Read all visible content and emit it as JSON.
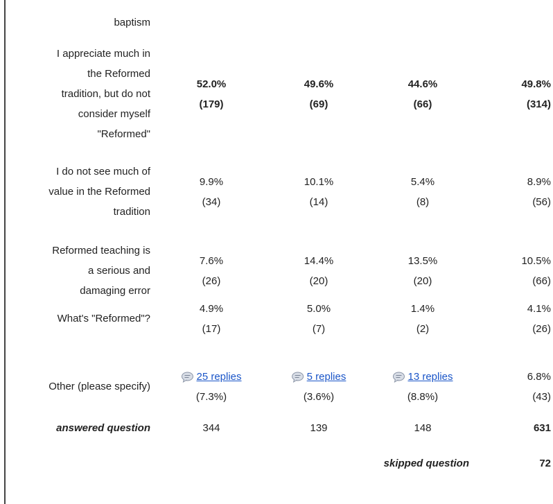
{
  "rows": [
    {
      "label_lines": [
        "baptism"
      ]
    },
    {
      "label_lines": [
        "I appreciate much in",
        "the Reformed",
        "tradition, but do not",
        "consider myself",
        "\"Reformed\""
      ],
      "bold": true,
      "cells": [
        [
          "52.0%",
          "(179)"
        ],
        [
          "49.6%",
          "(69)"
        ],
        [
          "44.6%",
          "(66)"
        ],
        [
          "49.8%",
          "(314)"
        ]
      ]
    },
    {
      "label_lines": [
        "I do not see much of",
        "value in the Reformed",
        "tradition"
      ],
      "cells": [
        [
          "9.9%",
          "(34)"
        ],
        [
          "10.1%",
          "(14)"
        ],
        [
          "5.4%",
          "(8)"
        ],
        [
          "8.9%",
          "(56)"
        ]
      ]
    },
    {
      "label_lines": [
        "Reformed teaching is",
        "a serious and",
        "damaging error"
      ],
      "cells": [
        [
          "7.6%",
          "(26)"
        ],
        [
          "14.4%",
          "(20)"
        ],
        [
          "13.5%",
          "(20)"
        ],
        [
          "10.5%",
          "(66)"
        ]
      ]
    },
    {
      "label_lines": [
        "What's \"Reformed\"?"
      ],
      "cells": [
        [
          "4.9%",
          "(17)"
        ],
        [
          "5.0%",
          "(7)"
        ],
        [
          "1.4%",
          "(2)"
        ],
        [
          "4.1%",
          "(26)"
        ]
      ]
    },
    {
      "label_lines": [
        "Other (please specify)"
      ],
      "cells": [
        {
          "link": "25 replies",
          "text": "(7.3%)"
        },
        {
          "link": "5 replies",
          "text": "(3.6%)"
        },
        {
          "link": "13 replies",
          "text": "(8.8%)"
        },
        [
          "6.8%",
          "(43)"
        ]
      ]
    }
  ],
  "answered": {
    "label": "answered question",
    "values": [
      "344",
      "139",
      "148",
      "631"
    ]
  },
  "skipped": {
    "label": "skipped question",
    "value": "72"
  }
}
